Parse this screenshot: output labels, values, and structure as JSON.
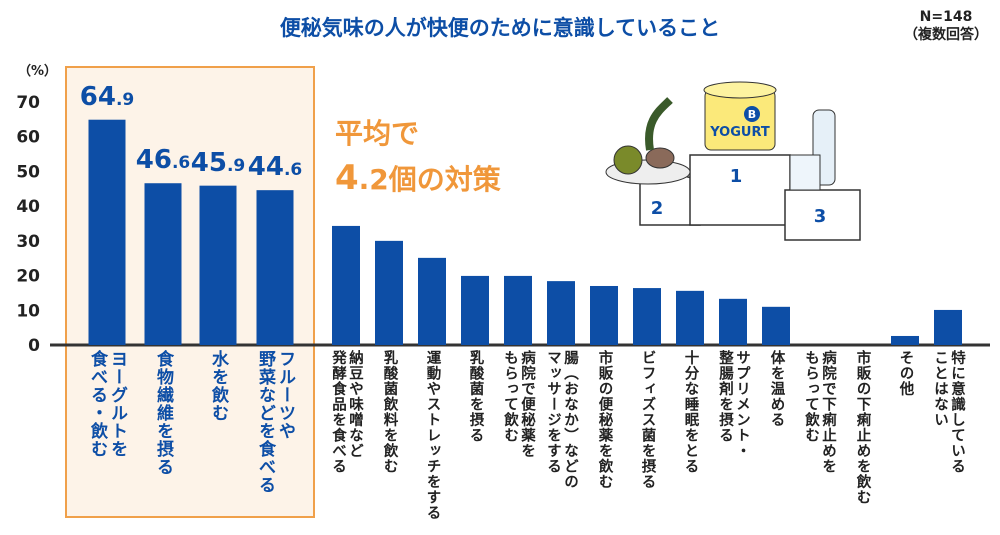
{
  "chart_data": {
    "type": "bar",
    "title": "便秘気味の人が快便のために意識していること",
    "note": [
      "N=148",
      "（複数回答）"
    ],
    "ylabel": "（%）",
    "ylim": [
      0,
      70
    ],
    "yticks": [
      0,
      10,
      20,
      30,
      40,
      50,
      60,
      70
    ],
    "grid": false,
    "categories": [
      "ヨーグルトを\n食べる・飲む",
      "食物繊維を摂る",
      "水を飲む",
      "フルーツや\n野菜などを食べる",
      "納豆や味噌など\n発酵食品を食べる",
      "乳酸菌飲料を飲む",
      "運動やストレッチをする",
      "乳酸菌を摂る",
      "病院で便秘薬を\nもらって飲む",
      "腸（おなか）などの\nマッサージをする",
      "市販の便秘薬を飲む",
      "ビフィズス菌を摂る",
      "十分な睡眠をとる",
      "サプリメント・\n整腸剤を摂る",
      "体を温める",
      "病院で下痢止めを\nもらって飲む",
      "市販の下痢止めを飲む",
      "その他",
      "特に意識している\nことはない"
    ],
    "values": [
      64.9,
      46.6,
      45.9,
      44.6,
      34.3,
      30.0,
      25.1,
      19.9,
      19.9,
      18.4,
      17.0,
      16.4,
      15.6,
      13.3,
      11.0,
      0,
      0,
      2.6,
      10.1
    ],
    "data_labels": [
      [
        "64",
        ".9"
      ],
      [
        "46",
        ".6"
      ],
      [
        "45",
        ".9"
      ],
      [
        "44",
        ".6"
      ]
    ],
    "annotation": [
      "平均で",
      "4",
      ".2個の対策"
    ],
    "illustration_labels": [
      "1",
      "2",
      "3",
      "YOGURT",
      "B"
    ],
    "colors": {
      "bar": "#0d4ea6",
      "highlight_bg": "#fdf3e8",
      "highlight_border": "#f0a04a",
      "annotation": "#f0973a"
    }
  }
}
